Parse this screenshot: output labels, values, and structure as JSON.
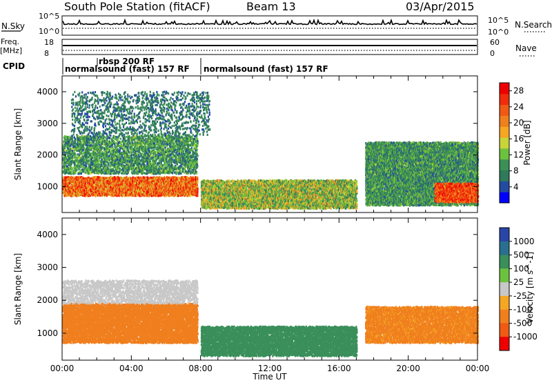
{
  "header": {
    "station": "South Pole Station (fitACF)",
    "beam": "Beam 13",
    "date": "03/Apr/2015"
  },
  "top_panels": {
    "nsky_label": "N.Sky",
    "nsky_ticks": [
      "10^5",
      "10^0"
    ],
    "nsearch_label": "N.Search",
    "nsearch_ticks": [
      "10^5",
      "10^0"
    ],
    "freq_label_1": "Freq.",
    "freq_label_2": "[MHz]",
    "freq_ticks": [
      "18",
      "8"
    ],
    "nave_label": "Nave",
    "nave_ticks": [
      "60",
      "0"
    ],
    "cpid_label": "CPID",
    "cpid_entries": [
      {
        "text": "normalsound (fast) 157 RF",
        "start_hour": 0.0
      },
      {
        "text": "rbsp 200 RF",
        "start_hour": 2.0
      },
      {
        "text": "normalsound (fast) 157 RF",
        "start_hour": 8.0
      }
    ]
  },
  "chart_data": [
    {
      "type": "heatmap",
      "name": "power",
      "ylabel": "Slant Range [km]",
      "xlabel": "",
      "xlim_hours": [
        0,
        24
      ],
      "ylim_km": [
        180,
        4500
      ],
      "yticks": [
        "1000",
        "2000",
        "3000",
        "4000"
      ],
      "colorbar": {
        "label": "Power [dB]",
        "range": [
          0,
          30
        ],
        "ticks": [
          "4",
          "8",
          "12",
          "16",
          "20",
          "24",
          "28"
        ],
        "colors": [
          "#0000ff",
          "#234ba0",
          "#2e7a5a",
          "#3c8f55",
          "#6cc23e",
          "#c8d43a",
          "#f5a623",
          "#f07f1e",
          "#f05a14",
          "#f02d0a",
          "#ee0000"
        ]
      },
      "regions": [
        {
          "band": "main echoes",
          "hours": [
            0,
            7.8
          ],
          "km": [
            700,
            1300
          ],
          "level_db": [
            14,
            30
          ]
        },
        {
          "band": "upper echoes",
          "hours": [
            0,
            7.8
          ],
          "km": [
            1400,
            2600
          ],
          "level_db": [
            4,
            14
          ]
        },
        {
          "band": "scattered echoes",
          "hours": [
            0.5,
            8.5
          ],
          "km": [
            2600,
            4000
          ],
          "level_db": [
            4,
            10
          ]
        },
        {
          "band": "midday patches",
          "hours": [
            8,
            17
          ],
          "km": [
            300,
            1200
          ],
          "level_db": [
            6,
            20
          ]
        },
        {
          "band": "evening echoes",
          "hours": [
            17.5,
            24
          ],
          "km": [
            400,
            2400
          ],
          "level_db": [
            4,
            14
          ]
        },
        {
          "band": "strong evening echoes",
          "hours": [
            21.5,
            24
          ],
          "km": [
            500,
            1100
          ],
          "level_db": [
            18,
            30
          ]
        }
      ]
    },
    {
      "type": "heatmap",
      "name": "velocity",
      "ylabel": "Slant Range [km]",
      "xlabel": "Time UT",
      "xlim_hours": [
        0,
        24
      ],
      "ylim_km": [
        180,
        4500
      ],
      "xticks": [
        "00:00",
        "04:00",
        "08:00",
        "12:00",
        "16:00",
        "20:00",
        "00:00"
      ],
      "yticks": [
        "1000",
        "2000",
        "3000",
        "4000"
      ],
      "colorbar": {
        "label": "Velocity [m s^-1]",
        "ticks": [
          "1000",
          "500",
          "100",
          "25",
          "-25",
          "-100",
          "-500",
          "-1000"
        ],
        "colors": [
          "#2946a6",
          "#2a6f8f",
          "#3a8f5a",
          "#6cc23e",
          "#c8c8c8",
          "#f5a623",
          "#f07f1e",
          "#f05a14",
          "#ee0000"
        ]
      },
      "regions": [
        {
          "band": "main echoes",
          "hours": [
            0,
            7.8
          ],
          "km": [
            700,
            1900
          ],
          "velocity": [
            -500,
            -100
          ]
        },
        {
          "band": "upper echoes",
          "hours": [
            0,
            7.8
          ],
          "km": [
            1900,
            2600
          ],
          "velocity": [
            -25,
            25
          ]
        },
        {
          "band": "midday patches",
          "hours": [
            8,
            17
          ],
          "km": [
            300,
            1200
          ],
          "velocity": [
            100,
            500
          ]
        },
        {
          "band": "evening echoes",
          "hours": [
            17.5,
            24
          ],
          "km": [
            700,
            1800
          ],
          "velocity": [
            -500,
            -25
          ]
        }
      ]
    }
  ]
}
